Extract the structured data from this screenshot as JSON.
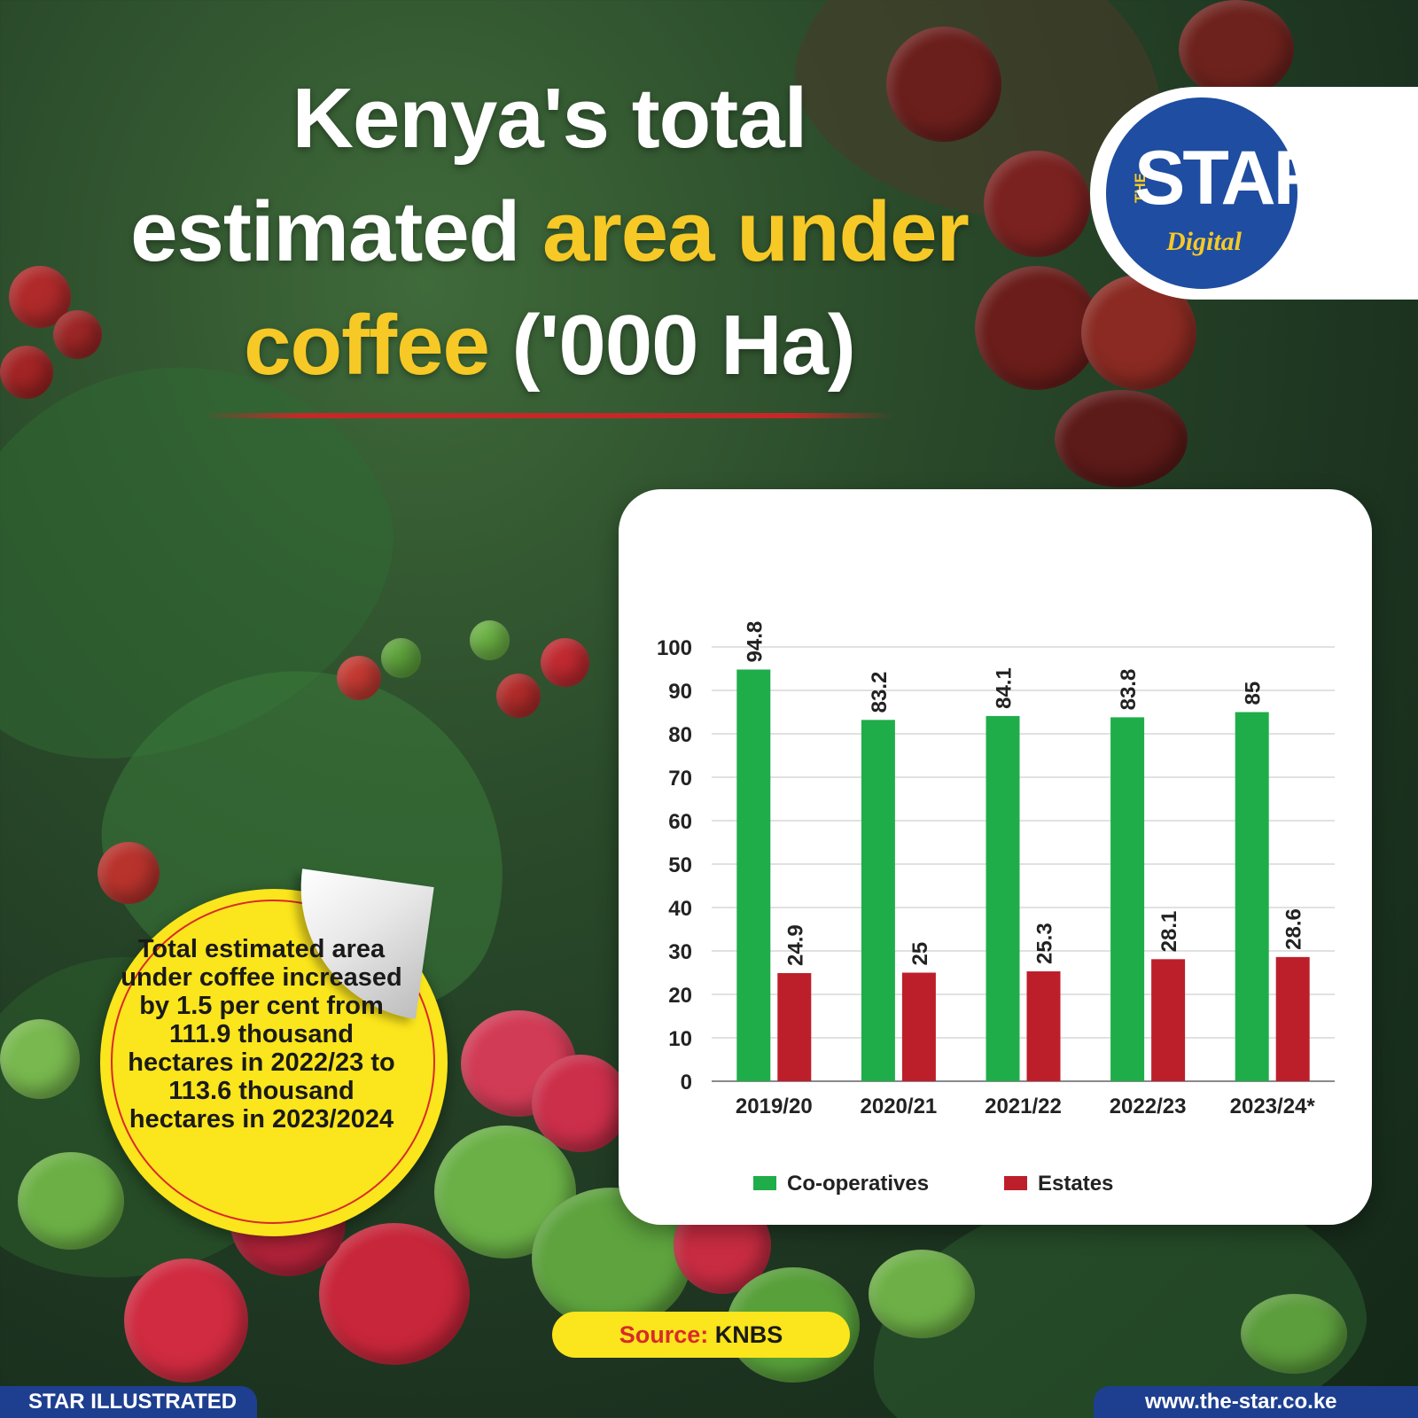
{
  "title": {
    "part1": "Kenya's total",
    "part2a": "estimated ",
    "part2b": "area under",
    "part3a": "coffee",
    "part3b": " ('000 Ha)"
  },
  "logo": {
    "the": "THE",
    "star": "STAR",
    "digital": "Digital"
  },
  "callout": {
    "text": "Total estimated area under coffee increased by 1.5 per cent from 111.9 thousand hectares in 2022/23 to 113.6 thousand hectares in 2023/2024"
  },
  "source": {
    "label": "Source:",
    "value": "KNBS"
  },
  "footer": {
    "left": "STAR ILLUSTRATED",
    "right": "www.the-star.co.ke"
  },
  "colors": {
    "cooperatives": "#1fad4a",
    "estates": "#bd1f2a",
    "highlight": "#f6c926"
  },
  "chart_data": {
    "type": "bar",
    "categories": [
      "2019/20",
      "2020/21",
      "2021/22",
      "2022/23",
      "2023/24*"
    ],
    "series": [
      {
        "name": "Co-operatives",
        "values": [
          94.8,
          83.2,
          84.1,
          83.8,
          85
        ],
        "labels": [
          "94.8",
          "83.2",
          "84.1",
          "83.8",
          "85"
        ]
      },
      {
        "name": "Estates",
        "values": [
          24.9,
          25,
          25.3,
          28.1,
          28.6
        ],
        "labels": [
          "24.9",
          "25",
          "25.3",
          "28.1",
          "28.6"
        ]
      }
    ],
    "yticks": [
      0,
      10,
      20,
      30,
      40,
      50,
      60,
      70,
      80,
      90,
      100
    ],
    "ylim": [
      0,
      100
    ],
    "grid": true,
    "legend_position": "bottom"
  }
}
